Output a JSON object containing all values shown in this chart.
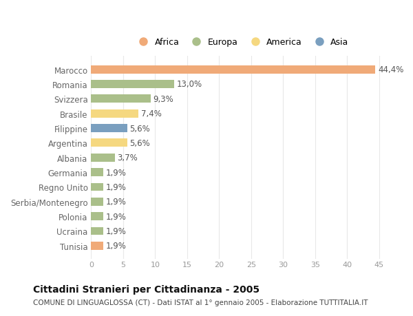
{
  "categories": [
    "Marocco",
    "Romania",
    "Svizzera",
    "Brasile",
    "Filippine",
    "Argentina",
    "Albania",
    "Germania",
    "Regno Unito",
    "Serbia/Montenegro",
    "Polonia",
    "Ucraina",
    "Tunisia"
  ],
  "values": [
    44.4,
    13.0,
    9.3,
    7.4,
    5.6,
    5.6,
    3.7,
    1.9,
    1.9,
    1.9,
    1.9,
    1.9,
    1.9
  ],
  "labels": [
    "44,4%",
    "13,0%",
    "9,3%",
    "7,4%",
    "5,6%",
    "5,6%",
    "3,7%",
    "1,9%",
    "1,9%",
    "1,9%",
    "1,9%",
    "1,9%",
    "1,9%"
  ],
  "continents": [
    "Africa",
    "Europa",
    "Europa",
    "America",
    "Asia",
    "America",
    "Europa",
    "Europa",
    "Europa",
    "Europa",
    "Europa",
    "Europa",
    "Africa"
  ],
  "colors": {
    "Africa": "#F0AA78",
    "Europa": "#AABF8A",
    "America": "#F5D880",
    "Asia": "#7A9FBF"
  },
  "xlim": [
    0,
    47
  ],
  "xticks": [
    0,
    5,
    10,
    15,
    20,
    25,
    30,
    35,
    40,
    45
  ],
  "title": "Cittadini Stranieri per Cittadinanza - 2005",
  "subtitle": "COMUNE DI LINGUAGLOSSA (CT) - Dati ISTAT al 1° gennaio 2005 - Elaborazione TUTTITALIA.IT",
  "background_color": "#ffffff",
  "grid_color": "#e8e8e8",
  "bar_height": 0.55,
  "label_fontsize": 8.5,
  "ytick_fontsize": 8.5,
  "xtick_fontsize": 8,
  "title_fontsize": 10,
  "subtitle_fontsize": 7.5,
  "legend_fontsize": 9
}
